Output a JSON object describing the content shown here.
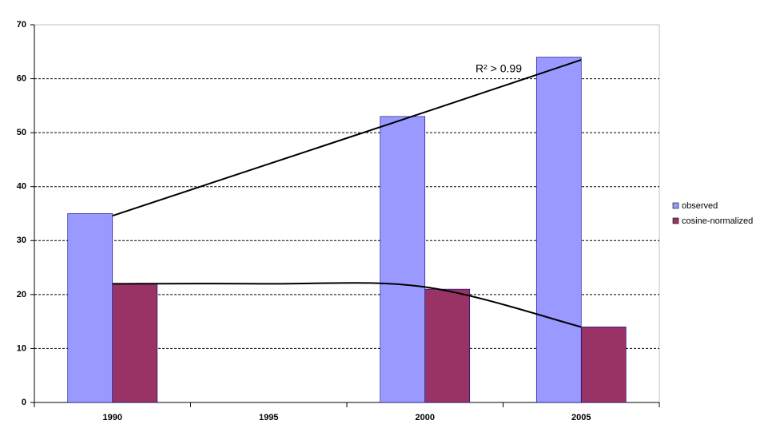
{
  "chart_data": {
    "type": "bar",
    "categories": [
      "1990",
      "1995",
      "2000",
      "2005"
    ],
    "series": [
      {
        "name": "observed",
        "color": "#9999ff",
        "values": [
          35,
          null,
          53,
          64
        ],
        "trend": [
          34.6,
          44.2,
          53.8,
          63.5
        ]
      },
      {
        "name": "cosine-normalized",
        "color": "#993366",
        "values": [
          22,
          null,
          21,
          14
        ],
        "trend": [
          22,
          22,
          21.4,
          14
        ]
      }
    ],
    "annotation": "R² > 0.99",
    "ylim": [
      0,
      70
    ],
    "yticks": [
      0,
      10,
      20,
      30,
      40,
      50,
      60,
      70
    ],
    "grid": true,
    "legend": "right"
  }
}
